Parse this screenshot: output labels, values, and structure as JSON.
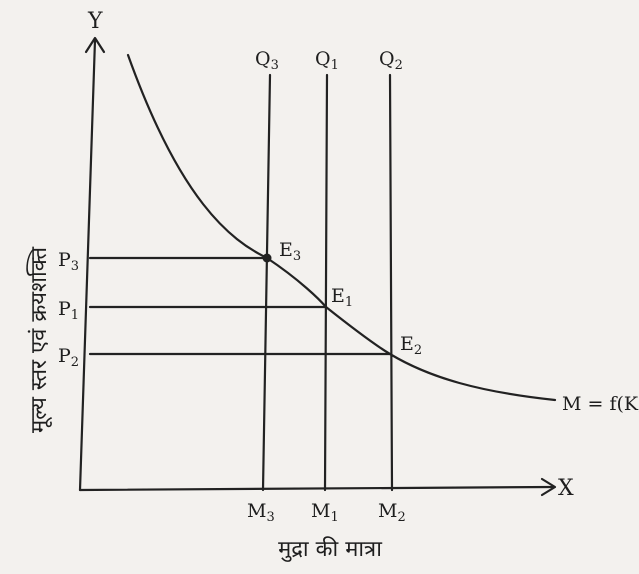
{
  "axes": {
    "y_symbol": "Y",
    "x_symbol": "X",
    "y_label": "मूल्य स्तर एवं क्रयशक्ति",
    "x_label": "मुद्रा की मात्रा"
  },
  "curve": {
    "label": "M = f(K, R)"
  },
  "vertical_lines": [
    {
      "top_label": "Q",
      "top_sub": "3",
      "bottom_label": "M",
      "bottom_sub": "3"
    },
    {
      "top_label": "Q",
      "top_sub": "1",
      "bottom_label": "M",
      "bottom_sub": "1"
    },
    {
      "top_label": "Q",
      "top_sub": "2",
      "bottom_label": "M",
      "bottom_sub": "2"
    }
  ],
  "price_levels": [
    {
      "label": "P",
      "sub": "3"
    },
    {
      "label": "P",
      "sub": "1"
    },
    {
      "label": "P",
      "sub": "2"
    }
  ],
  "equilibria": [
    {
      "label": "E",
      "sub": "3"
    },
    {
      "label": "E",
      "sub": "1"
    },
    {
      "label": "E",
      "sub": "2"
    }
  ]
}
